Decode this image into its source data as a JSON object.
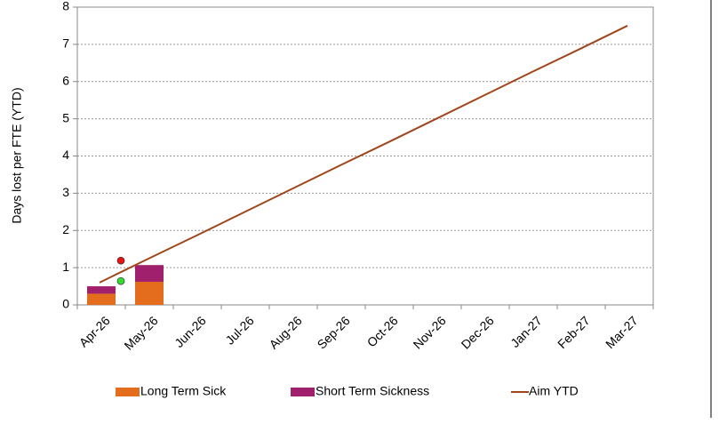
{
  "chart_data": {
    "type": "bar",
    "stacked": true,
    "y_axis_label": "Days lost per FTE (YTD)",
    "categories": [
      "Apr-26",
      "May-26",
      "Jun-26",
      "Jul-26",
      "Aug-26",
      "Sep-26",
      "Oct-26",
      "Nov-26",
      "Dec-26",
      "Jan-27",
      "Feb-27",
      "Mar-27"
    ],
    "series": [
      {
        "name": "Long Term Sick",
        "type": "bar",
        "color": "#e36c1d",
        "values": [
          0.3,
          0.62,
          null,
          null,
          null,
          null,
          null,
          null,
          null,
          null,
          null,
          null
        ]
      },
      {
        "name": "Short Term Sickness",
        "type": "bar",
        "color": "#a0206e",
        "values": [
          0.2,
          0.45,
          null,
          null,
          null,
          null,
          null,
          null,
          null,
          null,
          null,
          null
        ]
      },
      {
        "name": "Aim YTD",
        "type": "line",
        "color": "#a0461b",
        "values": [
          0.6,
          1.23,
          1.85,
          2.48,
          3.11,
          3.74,
          4.36,
          4.99,
          5.62,
          6.25,
          6.87,
          7.5
        ]
      }
    ],
    "points": [
      {
        "color": "#ee1111",
        "value": 1.19
      },
      {
        "color": "#33dd33",
        "value": 0.64
      }
    ],
    "ylim": [
      0,
      8
    ],
    "yticks": [
      0,
      1,
      2,
      3,
      4,
      5,
      6,
      7,
      8
    ],
    "grid": true,
    "legend": "bottom"
  }
}
